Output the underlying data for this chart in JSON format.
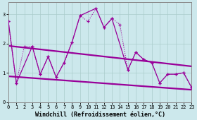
{
  "xlabel": "Windchill (Refroidissement éolien,°C)",
  "background_color": "#cce8ec",
  "line_color": "#990099",
  "xlim": [
    0,
    23
  ],
  "ylim": [
    0,
    3.4
  ],
  "yticks": [
    0,
    1,
    2,
    3
  ],
  "xticks": [
    0,
    1,
    2,
    3,
    4,
    5,
    6,
    7,
    8,
    9,
    10,
    11,
    12,
    13,
    14,
    15,
    16,
    17,
    18,
    19,
    20,
    21,
    22,
    23
  ],
  "curve1_x": [
    0,
    1,
    2,
    3,
    4,
    5,
    6,
    7,
    8,
    9,
    10,
    11,
    12,
    13,
    14,
    15,
    16,
    17,
    18,
    19,
    20,
    21,
    22,
    23
  ],
  "curve1_y": [
    2.75,
    0.65,
    1.9,
    1.9,
    0.95,
    1.55,
    0.85,
    1.35,
    2.05,
    2.95,
    2.75,
    3.2,
    2.55,
    2.85,
    2.65,
    1.1,
    1.7,
    1.45,
    1.35,
    0.65,
    0.95,
    0.95,
    1.0,
    0.5
  ],
  "curve2_x": [
    0,
    1,
    3,
    4,
    5,
    6,
    7,
    8,
    9,
    11,
    12,
    13,
    15,
    16,
    17,
    18,
    19,
    20,
    21,
    22,
    23
  ],
  "curve2_y": [
    2.75,
    0.65,
    1.9,
    0.95,
    1.55,
    0.85,
    1.35,
    2.05,
    2.95,
    3.2,
    2.55,
    2.85,
    1.1,
    1.7,
    1.45,
    1.35,
    0.65,
    0.95,
    0.95,
    1.0,
    0.5
  ],
  "line1_x": [
    0,
    23
  ],
  "line1_y": [
    1.92,
    1.22
  ],
  "line2_x": [
    0,
    23
  ],
  "line2_y": [
    0.88,
    0.42
  ]
}
